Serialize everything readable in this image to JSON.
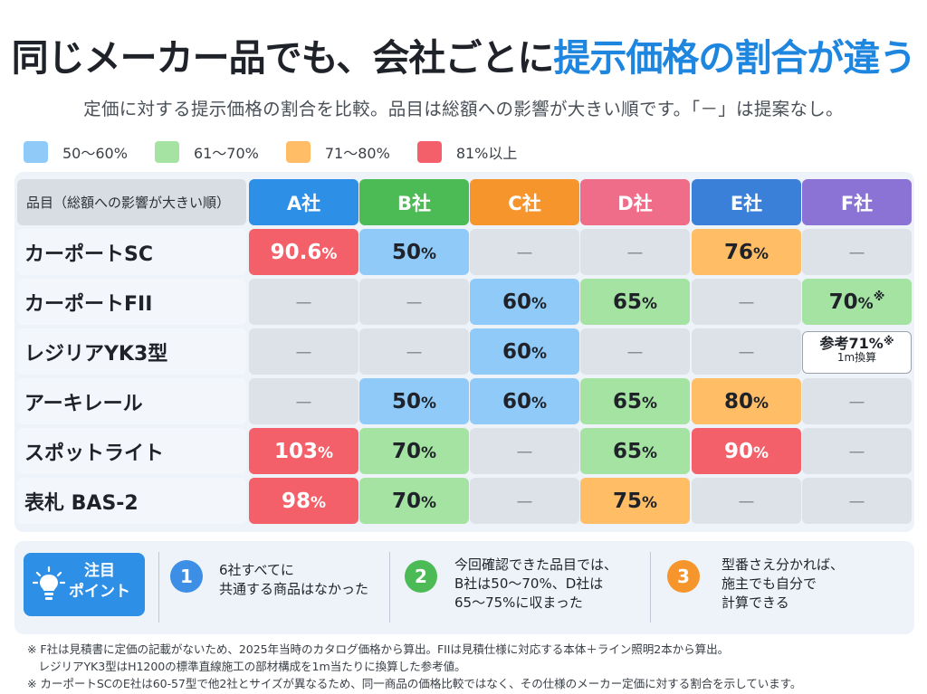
{
  "title": {
    "part1": "同じメーカー品でも、会社ごとに",
    "part2": "提示価格の割合が違う"
  },
  "subtitle": "定価に対する提示価格の割合を比較。品目は総額への影響が大きい順です。「－」は提案なし。",
  "colors": {
    "band_50_60": "#90caf9",
    "band_61_70": "#a5e3a2",
    "band_71_80": "#ffbd66",
    "band_81_up": "#f4606a",
    "none": "#dde2e8",
    "A": "#2e8fe6",
    "B": "#4cbb55",
    "C": "#f7952d",
    "D": "#f06d8a",
    "E": "#3a7fd8",
    "F": "#8b73d6"
  },
  "legend": [
    {
      "label": "50〜60%",
      "color": "#90caf9"
    },
    {
      "label": "61〜70%",
      "color": "#a5e3a2"
    },
    {
      "label": "71〜80%",
      "color": "#ffbd66"
    },
    {
      "label": "81%以上",
      "color": "#f4606a"
    }
  ],
  "table": {
    "header_label": "品目（総額への影響が大きい順）",
    "columns": [
      {
        "label": "A社",
        "color": "#2e8fe6"
      },
      {
        "label": "B社",
        "color": "#4cbb55"
      },
      {
        "label": "C社",
        "color": "#f7952d"
      },
      {
        "label": "D社",
        "color": "#f06d8a"
      },
      {
        "label": "E社",
        "color": "#3a7fd8"
      },
      {
        "label": "F社",
        "color": "#8b73d6"
      }
    ],
    "rows": [
      {
        "label": "カーポートSC",
        "cells": [
          {
            "value": "90.6",
            "band": "band_81_up"
          },
          {
            "value": "50",
            "band": "band_50_60"
          },
          {
            "value": "－",
            "band": "none"
          },
          {
            "value": "－",
            "band": "none"
          },
          {
            "value": "76",
            "band": "band_71_80"
          },
          {
            "value": "－",
            "band": "none"
          }
        ]
      },
      {
        "label": "カーポートFII",
        "cells": [
          {
            "value": "－",
            "band": "none"
          },
          {
            "value": "－",
            "band": "none"
          },
          {
            "value": "60",
            "band": "band_50_60"
          },
          {
            "value": "65",
            "band": "band_61_70"
          },
          {
            "value": "－",
            "band": "none"
          },
          {
            "value": "70",
            "band": "band_61_70",
            "note": "※"
          }
        ]
      },
      {
        "label": "レジリアYK3型",
        "cells": [
          {
            "value": "－",
            "band": "none"
          },
          {
            "value": "－",
            "band": "none"
          },
          {
            "value": "60",
            "band": "band_50_60"
          },
          {
            "value": "－",
            "band": "none"
          },
          {
            "value": "－",
            "band": "none"
          },
          {
            "value": "",
            "band": "ref"
          }
        ]
      },
      {
        "label": "アーキレール",
        "cells": [
          {
            "value": "－",
            "band": "none"
          },
          {
            "value": "50",
            "band": "band_50_60"
          },
          {
            "value": "60",
            "band": "band_50_60"
          },
          {
            "value": "65",
            "band": "band_61_70"
          },
          {
            "value": "80",
            "band": "band_71_80"
          },
          {
            "value": "－",
            "band": "none"
          }
        ]
      },
      {
        "label": "スポットライト",
        "cells": [
          {
            "value": "103",
            "band": "band_81_up"
          },
          {
            "value": "70",
            "band": "band_61_70"
          },
          {
            "value": "－",
            "band": "none"
          },
          {
            "value": "65",
            "band": "band_61_70"
          },
          {
            "value": "90",
            "band": "band_81_up"
          },
          {
            "value": "－",
            "band": "none"
          }
        ]
      },
      {
        "label": "表札 BAS-2",
        "cells": [
          {
            "value": "98",
            "band": "band_81_up"
          },
          {
            "value": "70",
            "band": "band_61_70"
          },
          {
            "value": "－",
            "band": "none"
          },
          {
            "value": "75",
            "band": "band_71_80"
          },
          {
            "value": "－",
            "band": "none"
          },
          {
            "value": "－",
            "band": "none"
          }
        ]
      }
    ],
    "pct_symbol": "%",
    "reference_cell": {
      "main": "参考71%",
      "note": "※",
      "sub": "1m換算"
    }
  },
  "points": {
    "badge_line1": "注目",
    "badge_line2": "ポイント",
    "items": [
      {
        "num": "1",
        "color": "#3d8fe6",
        "lines": [
          "6社すべてに",
          "共通する商品はなかった"
        ]
      },
      {
        "num": "2",
        "color": "#4cbb55",
        "lines": [
          "今回確認できた品目では、",
          "B社は50〜70%、D社は",
          "65〜75%に収まった"
        ]
      },
      {
        "num": "3",
        "color": "#f7952d",
        "lines": [
          "型番さえ分かれば、",
          "施主でも自分で",
          "計算できる"
        ]
      }
    ]
  },
  "footnotes": [
    "※ F社は見積書に定価の記載がないため、2025年当時のカタログ価格から算出。FIIは見積仕様に対応する本体＋ライン照明2本から算出。",
    "　レジリアYK3型はH1200の標準直線施工の部材構成を1m当たりに換算した参考値。",
    "※ カーポートSCのE社は60-57型で他2社とサイズが異なるため、同一商品の価格比較ではなく、その仕様のメーカー定価に対する割合を示しています。"
  ]
}
